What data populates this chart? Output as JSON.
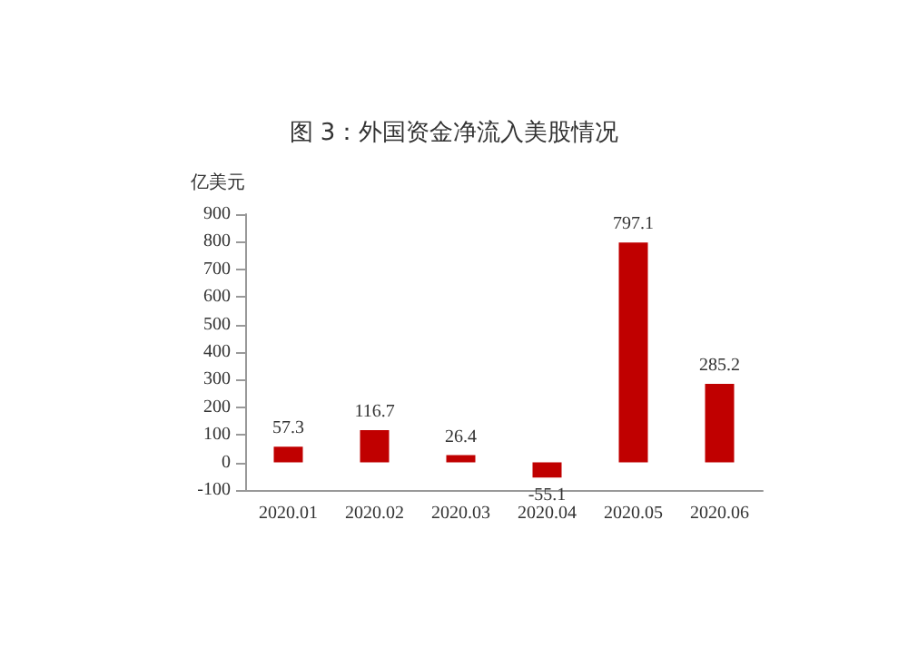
{
  "chart_data": {
    "type": "bar",
    "title": "图 3：外国资金净流入美股情况",
    "ylabel": "亿美元",
    "categories": [
      "2020.01",
      "2020.02",
      "2020.03",
      "2020.04",
      "2020.05",
      "2020.06"
    ],
    "values": [
      57.3,
      116.7,
      26.4,
      -55.1,
      797.1,
      285.2
    ],
    "color": "#c00000",
    "ylim": [
      -100,
      900
    ],
    "yticks": [
      -100,
      0,
      100,
      200,
      300,
      400,
      500,
      600,
      700,
      800,
      900
    ],
    "data_labels": true
  }
}
